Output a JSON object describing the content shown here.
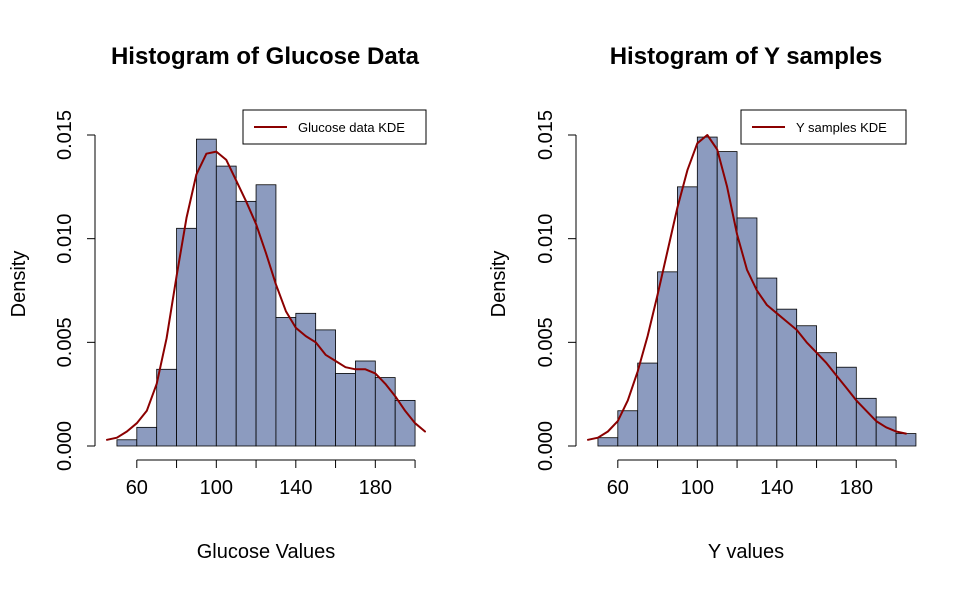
{
  "chart_data": [
    {
      "type": "bar",
      "title": "Histogram of Glucose Data",
      "xlabel": "Glucose Values",
      "ylabel": "Density",
      "xlim": [
        45,
        205
      ],
      "ylim": [
        0,
        0.015
      ],
      "x_ticks": [
        "60",
        "100",
        "140",
        "180"
      ],
      "y_ticks": [
        "0.000",
        "0.005",
        "0.010",
        "0.015"
      ],
      "bin_width": 10,
      "bins": [
        50,
        60,
        70,
        80,
        90,
        100,
        110,
        120,
        130,
        140,
        150,
        160,
        170,
        180,
        190
      ],
      "values": [
        0.0003,
        0.0009,
        0.0037,
        0.0105,
        0.0148,
        0.0135,
        0.0118,
        0.0126,
        0.0062,
        0.0064,
        0.0056,
        0.0035,
        0.0041,
        0.0033,
        0.0022
      ],
      "bar_color": "#8c9bbf",
      "series": [
        {
          "name": "Glucose data KDE",
          "color": "#8b0000",
          "x": [
            45,
            50,
            55,
            60,
            65,
            70,
            75,
            80,
            85,
            90,
            95,
            100,
            105,
            110,
            115,
            120,
            125,
            130,
            135,
            140,
            145,
            150,
            155,
            160,
            165,
            170,
            175,
            180,
            185,
            190,
            195,
            200,
            205
          ],
          "y": [
            0.0003,
            0.0004,
            0.0007,
            0.0011,
            0.0017,
            0.003,
            0.0052,
            0.0082,
            0.011,
            0.0131,
            0.0141,
            0.0142,
            0.0138,
            0.0128,
            0.0118,
            0.0107,
            0.0093,
            0.0078,
            0.0065,
            0.0057,
            0.0053,
            0.005,
            0.0044,
            0.0041,
            0.0038,
            0.0037,
            0.0037,
            0.0035,
            0.003,
            0.0024,
            0.0017,
            0.0011,
            0.0007
          ]
        }
      ],
      "legend_position": "top-right",
      "grid": false
    },
    {
      "type": "bar",
      "title": "Histogram of Y samples",
      "xlabel": "Y values",
      "ylabel": "Density",
      "xlim": [
        45,
        205
      ],
      "ylim": [
        0,
        0.015
      ],
      "x_ticks": [
        "60",
        "100",
        "140",
        "180"
      ],
      "y_ticks": [
        "0.000",
        "0.005",
        "0.010",
        "0.015"
      ],
      "bin_width": 10,
      "bins": [
        50,
        60,
        70,
        80,
        90,
        100,
        110,
        120,
        130,
        140,
        150,
        160,
        170,
        180,
        190,
        200
      ],
      "values": [
        0.0004,
        0.0017,
        0.004,
        0.0084,
        0.0125,
        0.0149,
        0.0142,
        0.011,
        0.0081,
        0.0066,
        0.0058,
        0.0045,
        0.0038,
        0.0023,
        0.0014,
        0.0006
      ],
      "bar_color": "#8c9bbf",
      "series": [
        {
          "name": "Y samples KDE",
          "color": "#8b0000",
          "x": [
            45,
            50,
            55,
            60,
            65,
            70,
            75,
            80,
            85,
            90,
            95,
            100,
            105,
            110,
            115,
            120,
            125,
            130,
            135,
            140,
            145,
            150,
            155,
            160,
            165,
            170,
            175,
            180,
            185,
            190,
            195,
            200,
            205
          ],
          "y": [
            0.0003,
            0.0004,
            0.0007,
            0.0012,
            0.0022,
            0.0036,
            0.0053,
            0.0073,
            0.0094,
            0.0115,
            0.0133,
            0.0146,
            0.015,
            0.0143,
            0.0125,
            0.0102,
            0.0085,
            0.0075,
            0.0068,
            0.0064,
            0.006,
            0.0056,
            0.005,
            0.0045,
            0.004,
            0.0034,
            0.0028,
            0.0022,
            0.0017,
            0.0012,
            0.0009,
            0.0007,
            0.0006
          ]
        }
      ],
      "legend_position": "top-right",
      "grid": false
    }
  ]
}
